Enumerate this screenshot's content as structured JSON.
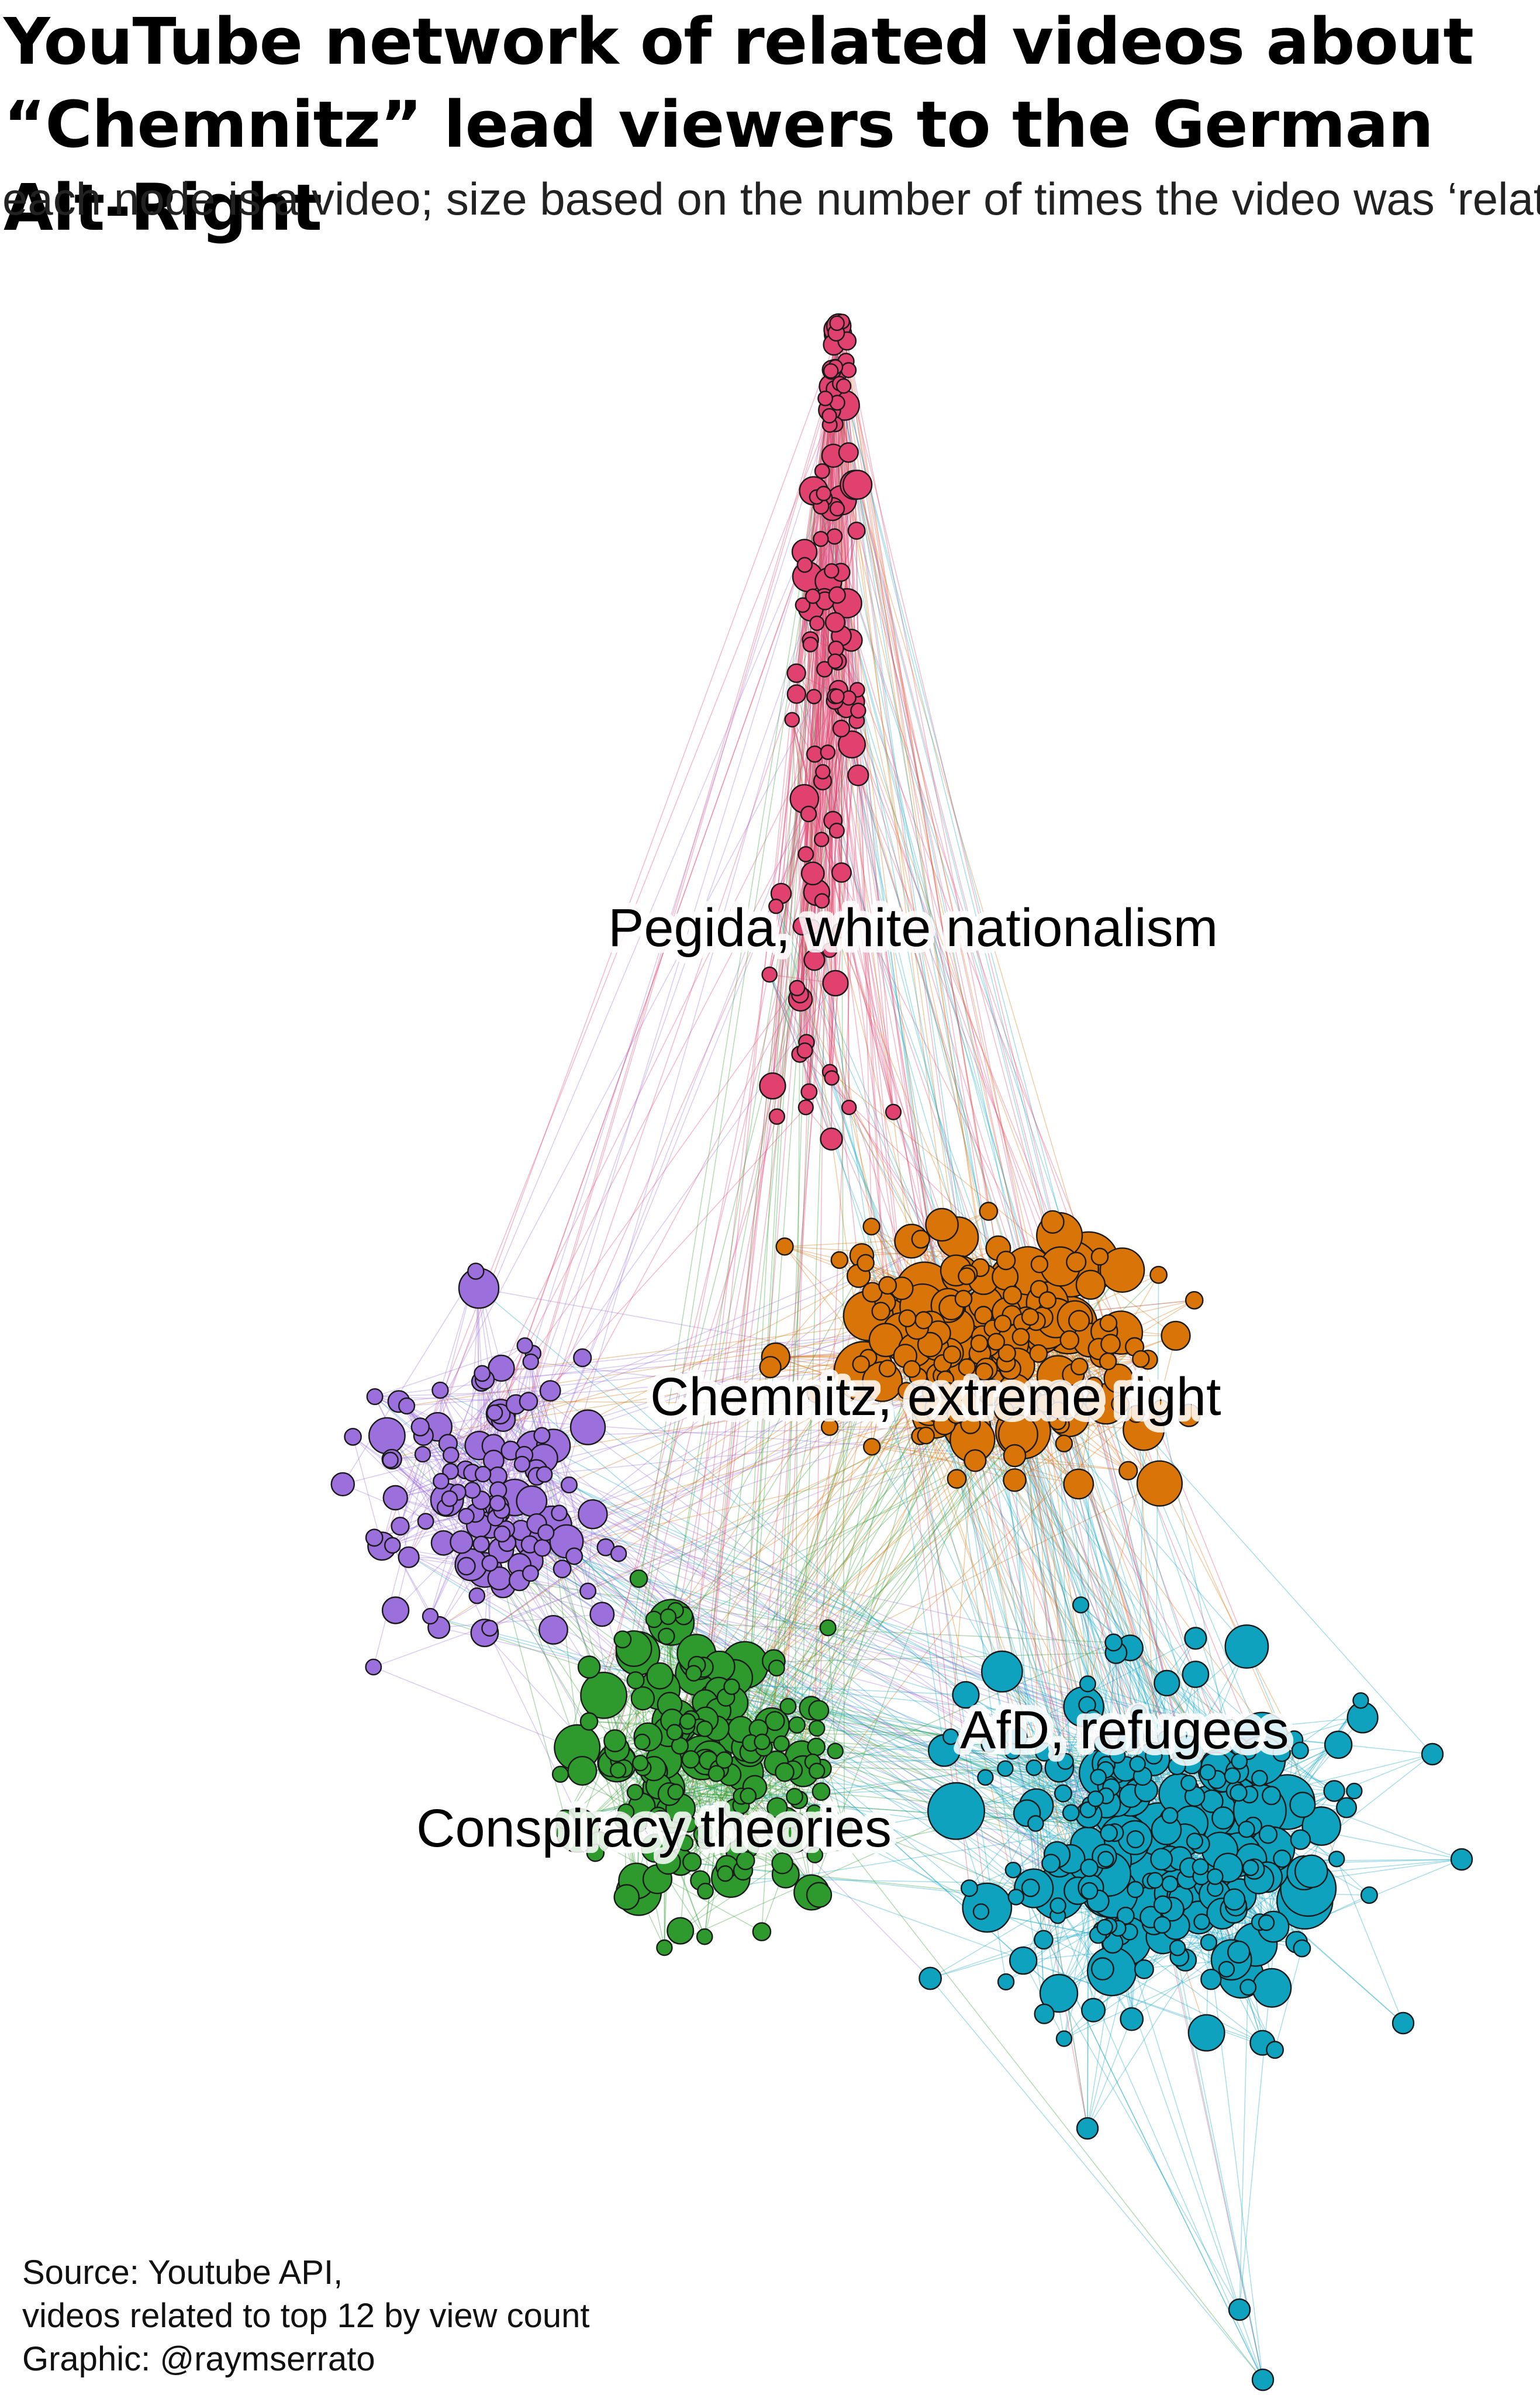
{
  "header": {
    "title_line1": "YouTube network of related videos about",
    "title_line2": "“Chemnitz” lead viewers to the German Alt-Right",
    "subtitle": "each node is a video; size based on the number of times the video was ‘related’"
  },
  "clusters": [
    {
      "label": "Pegida, white nationalism",
      "color": "#e0416f"
    },
    {
      "label": "Chemnitz, extreme right",
      "color": "#d97409"
    },
    {
      "label": "AfD, refugees",
      "color": "#0fa2bf"
    },
    {
      "label": "Conspiracy theories",
      "color": "#2e9a2e"
    },
    {
      "label": "",
      "color": "#9b70dc"
    }
  ],
  "footer": {
    "source_line1": "Source: Youtube API,",
    "source_line2": "videos related to top 12 by view count",
    "credit": "Graphic: @raymserrato"
  }
}
